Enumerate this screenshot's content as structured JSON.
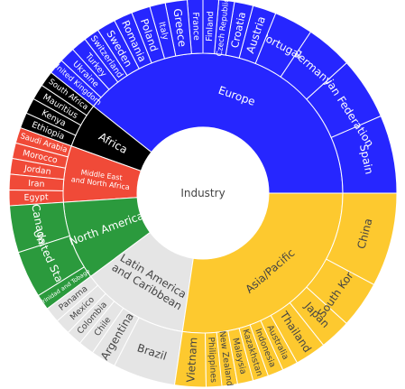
{
  "chart_data": {
    "type": "sunburst",
    "center_label": "Industry",
    "colors": {
      "Europe": "#2626ff",
      "Asia/Pacific": "#fdc92f",
      "Latin America and Caribbean": "#e5e5e5",
      "North America": "#2b9a3d",
      "Middle East and North Africa": "#f04a38",
      "Africa": "#000000"
    },
    "regions": [
      {
        "name": "Europe",
        "label": "Europe",
        "children": [
          {
            "name": "Spain",
            "value": 5.0
          },
          {
            "name": "Russian Federation",
            "value": 4.0
          },
          {
            "name": "Germany",
            "value": 3.0
          },
          {
            "name": "Portugal",
            "value": 2.5
          },
          {
            "name": "Austria",
            "value": 1.5
          },
          {
            "name": "Croatia",
            "value": 1.2
          },
          {
            "name": "Czech Republic",
            "value": 1.0
          },
          {
            "name": "Finland",
            "value": 1.0
          },
          {
            "name": "France",
            "value": 1.0
          },
          {
            "name": "Greece",
            "value": 1.4
          },
          {
            "name": "Italy",
            "value": 1.0
          },
          {
            "name": "Poland",
            "value": 1.2
          },
          {
            "name": "Romania",
            "value": 1.2
          },
          {
            "name": "Sweden",
            "value": 1.2
          },
          {
            "name": "Switzerland",
            "value": 1.0
          },
          {
            "name": "Turkey",
            "value": 1.0
          },
          {
            "name": "Ukraine",
            "value": 1.0
          },
          {
            "name": "United Kingdom",
            "value": 1.0
          }
        ]
      },
      {
        "name": "Africa",
        "label": "Africa",
        "children": [
          {
            "name": "South Africa",
            "value": 1.0
          },
          {
            "name": "Mauritius",
            "value": 1.0
          },
          {
            "name": "Kenya",
            "value": 1.0
          },
          {
            "name": "Ethiopia",
            "value": 1.0
          }
        ]
      },
      {
        "name": "Middle East and North Africa",
        "label": [
          "Middle East",
          "and North Africa"
        ],
        "children": [
          {
            "name": "Saudi Arabia",
            "value": 1.0
          },
          {
            "name": "Morocco",
            "value": 1.0
          },
          {
            "name": "Jordan",
            "value": 1.0
          },
          {
            "name": "Iran",
            "value": 1.0
          },
          {
            "name": "Egypt",
            "value": 1.0
          }
        ]
      },
      {
        "name": "North America",
        "label": "North America",
        "children": [
          {
            "name": "Canada",
            "value": 3.0
          },
          {
            "name": "United States",
            "value": 3.0
          },
          {
            "name": "Trinidad and Tobago",
            "value": 1.0
          }
        ]
      },
      {
        "name": "Latin America and Caribbean",
        "label": [
          "Latin America",
          "and Caribbean"
        ],
        "children": [
          {
            "name": "Panama",
            "value": 1.0
          },
          {
            "name": "Mexico",
            "value": 1.0
          },
          {
            "name": "Colombia",
            "value": 1.0
          },
          {
            "name": "Chile",
            "value": 1.0
          },
          {
            "name": "Argentina",
            "value": 1.6
          },
          {
            "name": "Brazil",
            "value": 4.0
          }
        ]
      },
      {
        "name": "Asia/Pacific",
        "label": "Asia/Pacific",
        "children": [
          {
            "name": "Vietnam",
            "value": 2.0
          },
          {
            "name": "Philippines",
            "value": 1.0
          },
          {
            "name": "New Zealand",
            "value": 1.0
          },
          {
            "name": "Malaysia",
            "value": 1.0
          },
          {
            "name": "Kazakhstan",
            "value": 1.0
          },
          {
            "name": "Indonesia",
            "value": 1.0
          },
          {
            "name": "Australia",
            "value": 1.0
          },
          {
            "name": "Thailand",
            "value": 2.0
          },
          {
            "name": "Japan",
            "value": 2.0
          },
          {
            "name": "South Korea",
            "value": 3.0
          },
          {
            "name": "China",
            "value": 6.0
          }
        ]
      }
    ]
  }
}
